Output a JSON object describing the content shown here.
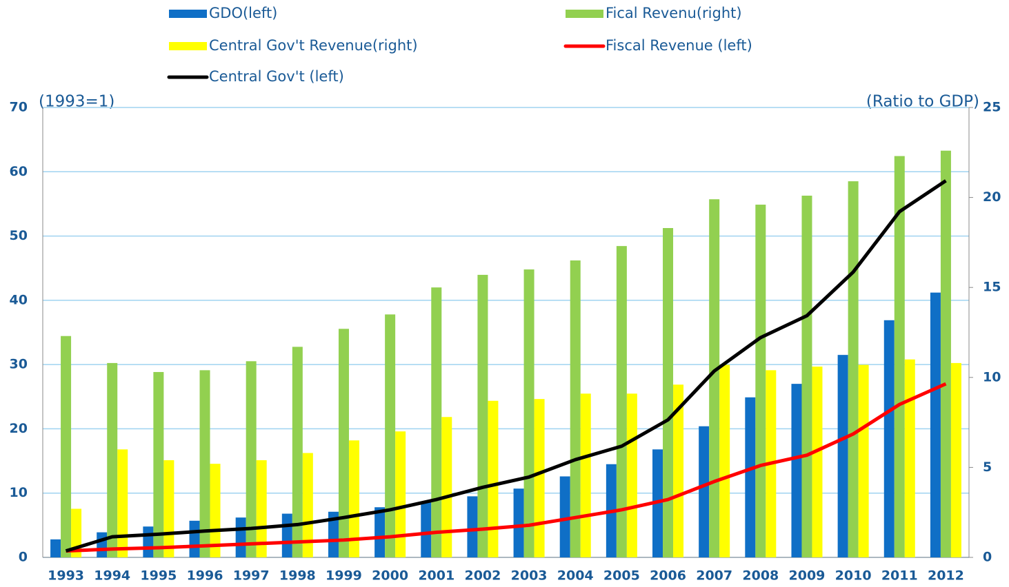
{
  "chart_data": {
    "type": "bar",
    "y_label": "(1993=1)",
    "y2_label": "(Ratio to GDP)",
    "categories": [
      "1993",
      "1994",
      "1995",
      "1996",
      "1997",
      "1998",
      "1999",
      "2000",
      "2001",
      "2002",
      "2003",
      "2004",
      "2005",
      "2006",
      "2007",
      "2008",
      "2009",
      "2010",
      "2011",
      "2012"
    ],
    "ylim": [
      0,
      70
    ],
    "yticks": [
      0,
      10,
      20,
      30,
      40,
      50,
      60,
      70
    ],
    "y2lim": [
      0,
      25
    ],
    "y2ticks": [
      0,
      5,
      10,
      15,
      20,
      25
    ],
    "grid": true,
    "series": [
      {
        "name": "GDO(left)",
        "type": "bar",
        "color": "#0f6fc6",
        "values": [
          2.8,
          3.9,
          4.8,
          5.7,
          6.2,
          6.8,
          7.1,
          7.8,
          8.6,
          9.5,
          10.7,
          12.6,
          14.5,
          16.8,
          20.4,
          24.9,
          27.0,
          31.5,
          36.9,
          41.2
        ]
      },
      {
        "name": "Fical Revenu(right)",
        "type": "bar",
        "axis": "y2",
        "color": "#92d050",
        "values": [
          12.3,
          10.8,
          10.3,
          10.4,
          10.9,
          11.7,
          12.7,
          13.5,
          15.0,
          15.7,
          16.0,
          16.5,
          17.3,
          18.3,
          19.9,
          19.6,
          20.1,
          20.9,
          22.3,
          22.6
        ]
      },
      {
        "name": "Central Gov't Revenue(right)",
        "type": "bar",
        "axis": "y2",
        "color": "#ffff00",
        "values": [
          2.7,
          6.0,
          5.4,
          5.2,
          5.4,
          5.8,
          6.5,
          7.0,
          7.8,
          8.7,
          8.8,
          9.1,
          9.1,
          9.6,
          10.7,
          10.4,
          10.6,
          10.7,
          11.0,
          10.8
        ]
      },
      {
        "name": "Fiscal Revenue (left)",
        "type": "line",
        "color": "#ff0000",
        "values": [
          1.0,
          1.3,
          1.5,
          1.8,
          2.1,
          2.4,
          2.7,
          3.2,
          3.9,
          4.4,
          5.0,
          6.2,
          7.4,
          9.0,
          11.8,
          14.3,
          15.9,
          19.2,
          23.8,
          27.0
        ]
      },
      {
        "name": "Central Gov't (left)",
        "type": "line",
        "color": "#000000",
        "values": [
          1.0,
          3.2,
          3.6,
          4.1,
          4.5,
          5.1,
          6.2,
          7.4,
          9.0,
          10.9,
          12.5,
          15.2,
          17.3,
          21.4,
          29.0,
          34.2,
          37.6,
          44.4,
          53.8,
          58.6
        ]
      }
    ]
  }
}
